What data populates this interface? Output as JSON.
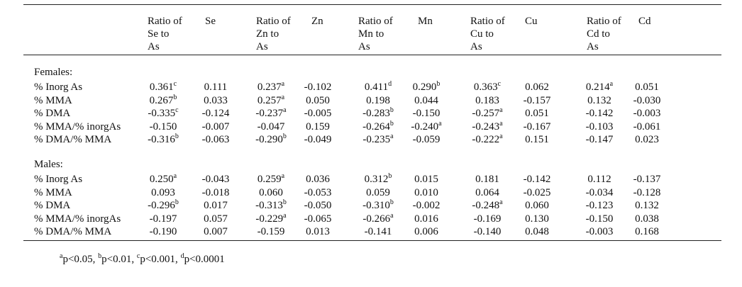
{
  "table": {
    "headers": [
      {
        "key": "se_ratio",
        "lines": [
          "Ratio of",
          "Se to",
          "As"
        ]
      },
      {
        "key": "se",
        "lines": [
          "Se"
        ]
      },
      {
        "key": "zn_ratio",
        "lines": [
          "Ratio of",
          "Zn to",
          "As"
        ]
      },
      {
        "key": "zn",
        "lines": [
          "Zn"
        ]
      },
      {
        "key": "mn_ratio",
        "lines": [
          "Ratio of",
          "Mn to",
          "As"
        ]
      },
      {
        "key": "mn",
        "lines": [
          "Mn"
        ]
      },
      {
        "key": "cu_ratio",
        "lines": [
          "Ratio of",
          "Cu to",
          "As"
        ]
      },
      {
        "key": "cu",
        "lines": [
          "Cu"
        ]
      },
      {
        "key": "cd_ratio",
        "lines": [
          "Ratio of",
          "Cd to",
          "As"
        ]
      },
      {
        "key": "cd",
        "lines": [
          "Cd"
        ]
      }
    ],
    "sections": [
      {
        "label": "Females:",
        "rows": [
          {
            "label": "% Inorg As",
            "cells": [
              {
                "v": "0.361",
                "s": "c"
              },
              {
                "v": "0.111",
                "s": ""
              },
              {
                "v": "0.237",
                "s": "a"
              },
              {
                "v": "-0.102",
                "s": ""
              },
              {
                "v": "0.411",
                "s": "d"
              },
              {
                "v": "0.290",
                "s": "b"
              },
              {
                "v": "0.363",
                "s": "c"
              },
              {
                "v": "0.062",
                "s": ""
              },
              {
                "v": "0.214",
                "s": "a"
              },
              {
                "v": "0.051",
                "s": ""
              }
            ]
          },
          {
            "label": "% MMA",
            "cells": [
              {
                "v": "0.267",
                "s": "b"
              },
              {
                "v": "0.033",
                "s": ""
              },
              {
                "v": "0.257",
                "s": "a"
              },
              {
                "v": "0.050",
                "s": ""
              },
              {
                "v": "0.198",
                "s": ""
              },
              {
                "v": "0.044",
                "s": ""
              },
              {
                "v": "0.183",
                "s": ""
              },
              {
                "v": "-0.157",
                "s": ""
              },
              {
                "v": "0.132",
                "s": ""
              },
              {
                "v": "-0.030",
                "s": ""
              }
            ]
          },
          {
            "label": "% DMA",
            "cells": [
              {
                "v": "-0.335",
                "s": "c"
              },
              {
                "v": "-0.124",
                "s": ""
              },
              {
                "v": "-0.237",
                "s": "a"
              },
              {
                "v": "-0.005",
                "s": ""
              },
              {
                "v": "-0.283",
                "s": "b"
              },
              {
                "v": "-0.150",
                "s": ""
              },
              {
                "v": "-0.257",
                "s": "a"
              },
              {
                "v": "0.051",
                "s": ""
              },
              {
                "v": "-0.142",
                "s": ""
              },
              {
                "v": "-0.003",
                "s": ""
              }
            ]
          },
          {
            "label": "% MMA/% inorgAs",
            "cells": [
              {
                "v": "-0.150",
                "s": ""
              },
              {
                "v": "-0.007",
                "s": ""
              },
              {
                "v": "-0.047",
                "s": ""
              },
              {
                "v": "0.159",
                "s": ""
              },
              {
                "v": "-0.264",
                "s": "b"
              },
              {
                "v": "-0.240",
                "s": "a"
              },
              {
                "v": "-0.243",
                "s": "a"
              },
              {
                "v": "-0.167",
                "s": ""
              },
              {
                "v": "-0.103",
                "s": ""
              },
              {
                "v": "-0.061",
                "s": ""
              }
            ]
          },
          {
            "label": "% DMA/% MMA",
            "cells": [
              {
                "v": "-0.316",
                "s": "b"
              },
              {
                "v": "-0.063",
                "s": ""
              },
              {
                "v": "-0.290",
                "s": "b"
              },
              {
                "v": "-0.049",
                "s": ""
              },
              {
                "v": "-0.235",
                "s": "a"
              },
              {
                "v": "-0.059",
                "s": ""
              },
              {
                "v": "-0.222",
                "s": "a"
              },
              {
                "v": "0.151",
                "s": ""
              },
              {
                "v": "-0.147",
                "s": ""
              },
              {
                "v": "0.023",
                "s": ""
              }
            ]
          }
        ]
      },
      {
        "label": "Males:",
        "rows": [
          {
            "label": "% Inorg As",
            "cells": [
              {
                "v": "0.250",
                "s": "a"
              },
              {
                "v": "-0.043",
                "s": ""
              },
              {
                "v": "0.259",
                "s": "a"
              },
              {
                "v": "0.036",
                "s": ""
              },
              {
                "v": "0.312",
                "s": "b"
              },
              {
                "v": "0.015",
                "s": ""
              },
              {
                "v": "0.181",
                "s": ""
              },
              {
                "v": "-0.142",
                "s": ""
              },
              {
                "v": "0.112",
                "s": ""
              },
              {
                "v": "-0.137",
                "s": ""
              }
            ]
          },
          {
            "label": "% MMA",
            "cells": [
              {
                "v": "0.093",
                "s": ""
              },
              {
                "v": "-0.018",
                "s": ""
              },
              {
                "v": "0.060",
                "s": ""
              },
              {
                "v": "-0.053",
                "s": ""
              },
              {
                "v": "0.059",
                "s": ""
              },
              {
                "v": "0.010",
                "s": ""
              },
              {
                "v": "0.064",
                "s": ""
              },
              {
                "v": "-0.025",
                "s": ""
              },
              {
                "v": "-0.034",
                "s": ""
              },
              {
                "v": "-0.128",
                "s": ""
              }
            ]
          },
          {
            "label": "% DMA",
            "cells": [
              {
                "v": "-0.296",
                "s": "b"
              },
              {
                "v": "0.017",
                "s": ""
              },
              {
                "v": "-0.313",
                "s": "b"
              },
              {
                "v": "-0.050",
                "s": ""
              },
              {
                "v": "-0.310",
                "s": "b"
              },
              {
                "v": "-0.002",
                "s": ""
              },
              {
                "v": "-0.248",
                "s": "a"
              },
              {
                "v": "0.060",
                "s": ""
              },
              {
                "v": "-0.123",
                "s": ""
              },
              {
                "v": "0.132",
                "s": ""
              }
            ]
          },
          {
            "label": "% MMA/% inorgAs",
            "cells": [
              {
                "v": "-0.197",
                "s": ""
              },
              {
                "v": "0.057",
                "s": ""
              },
              {
                "v": "-0.229",
                "s": "a"
              },
              {
                "v": "-0.065",
                "s": ""
              },
              {
                "v": "-0.266",
                "s": "a"
              },
              {
                "v": "0.016",
                "s": ""
              },
              {
                "v": "-0.169",
                "s": ""
              },
              {
                "v": "0.130",
                "s": ""
              },
              {
                "v": "-0.150",
                "s": ""
              },
              {
                "v": "0.038",
                "s": ""
              }
            ]
          },
          {
            "label": "% DMA/% MMA",
            "cells": [
              {
                "v": "-0.190",
                "s": ""
              },
              {
                "v": "0.007",
                "s": ""
              },
              {
                "v": "-0.159",
                "s": ""
              },
              {
                "v": "0.013",
                "s": ""
              },
              {
                "v": "-0.141",
                "s": ""
              },
              {
                "v": "0.006",
                "s": ""
              },
              {
                "v": "-0.140",
                "s": ""
              },
              {
                "v": "0.048",
                "s": ""
              },
              {
                "v": "-0.003",
                "s": ""
              },
              {
                "v": "0.168",
                "s": ""
              }
            ]
          }
        ]
      }
    ]
  },
  "footnote": [
    {
      "mark": "a",
      "text": "p<0.05, "
    },
    {
      "mark": "b",
      "text": "p<0.01, "
    },
    {
      "mark": "c",
      "text": "p<0.001, "
    },
    {
      "mark": "d",
      "text": "p<0.0001"
    }
  ]
}
